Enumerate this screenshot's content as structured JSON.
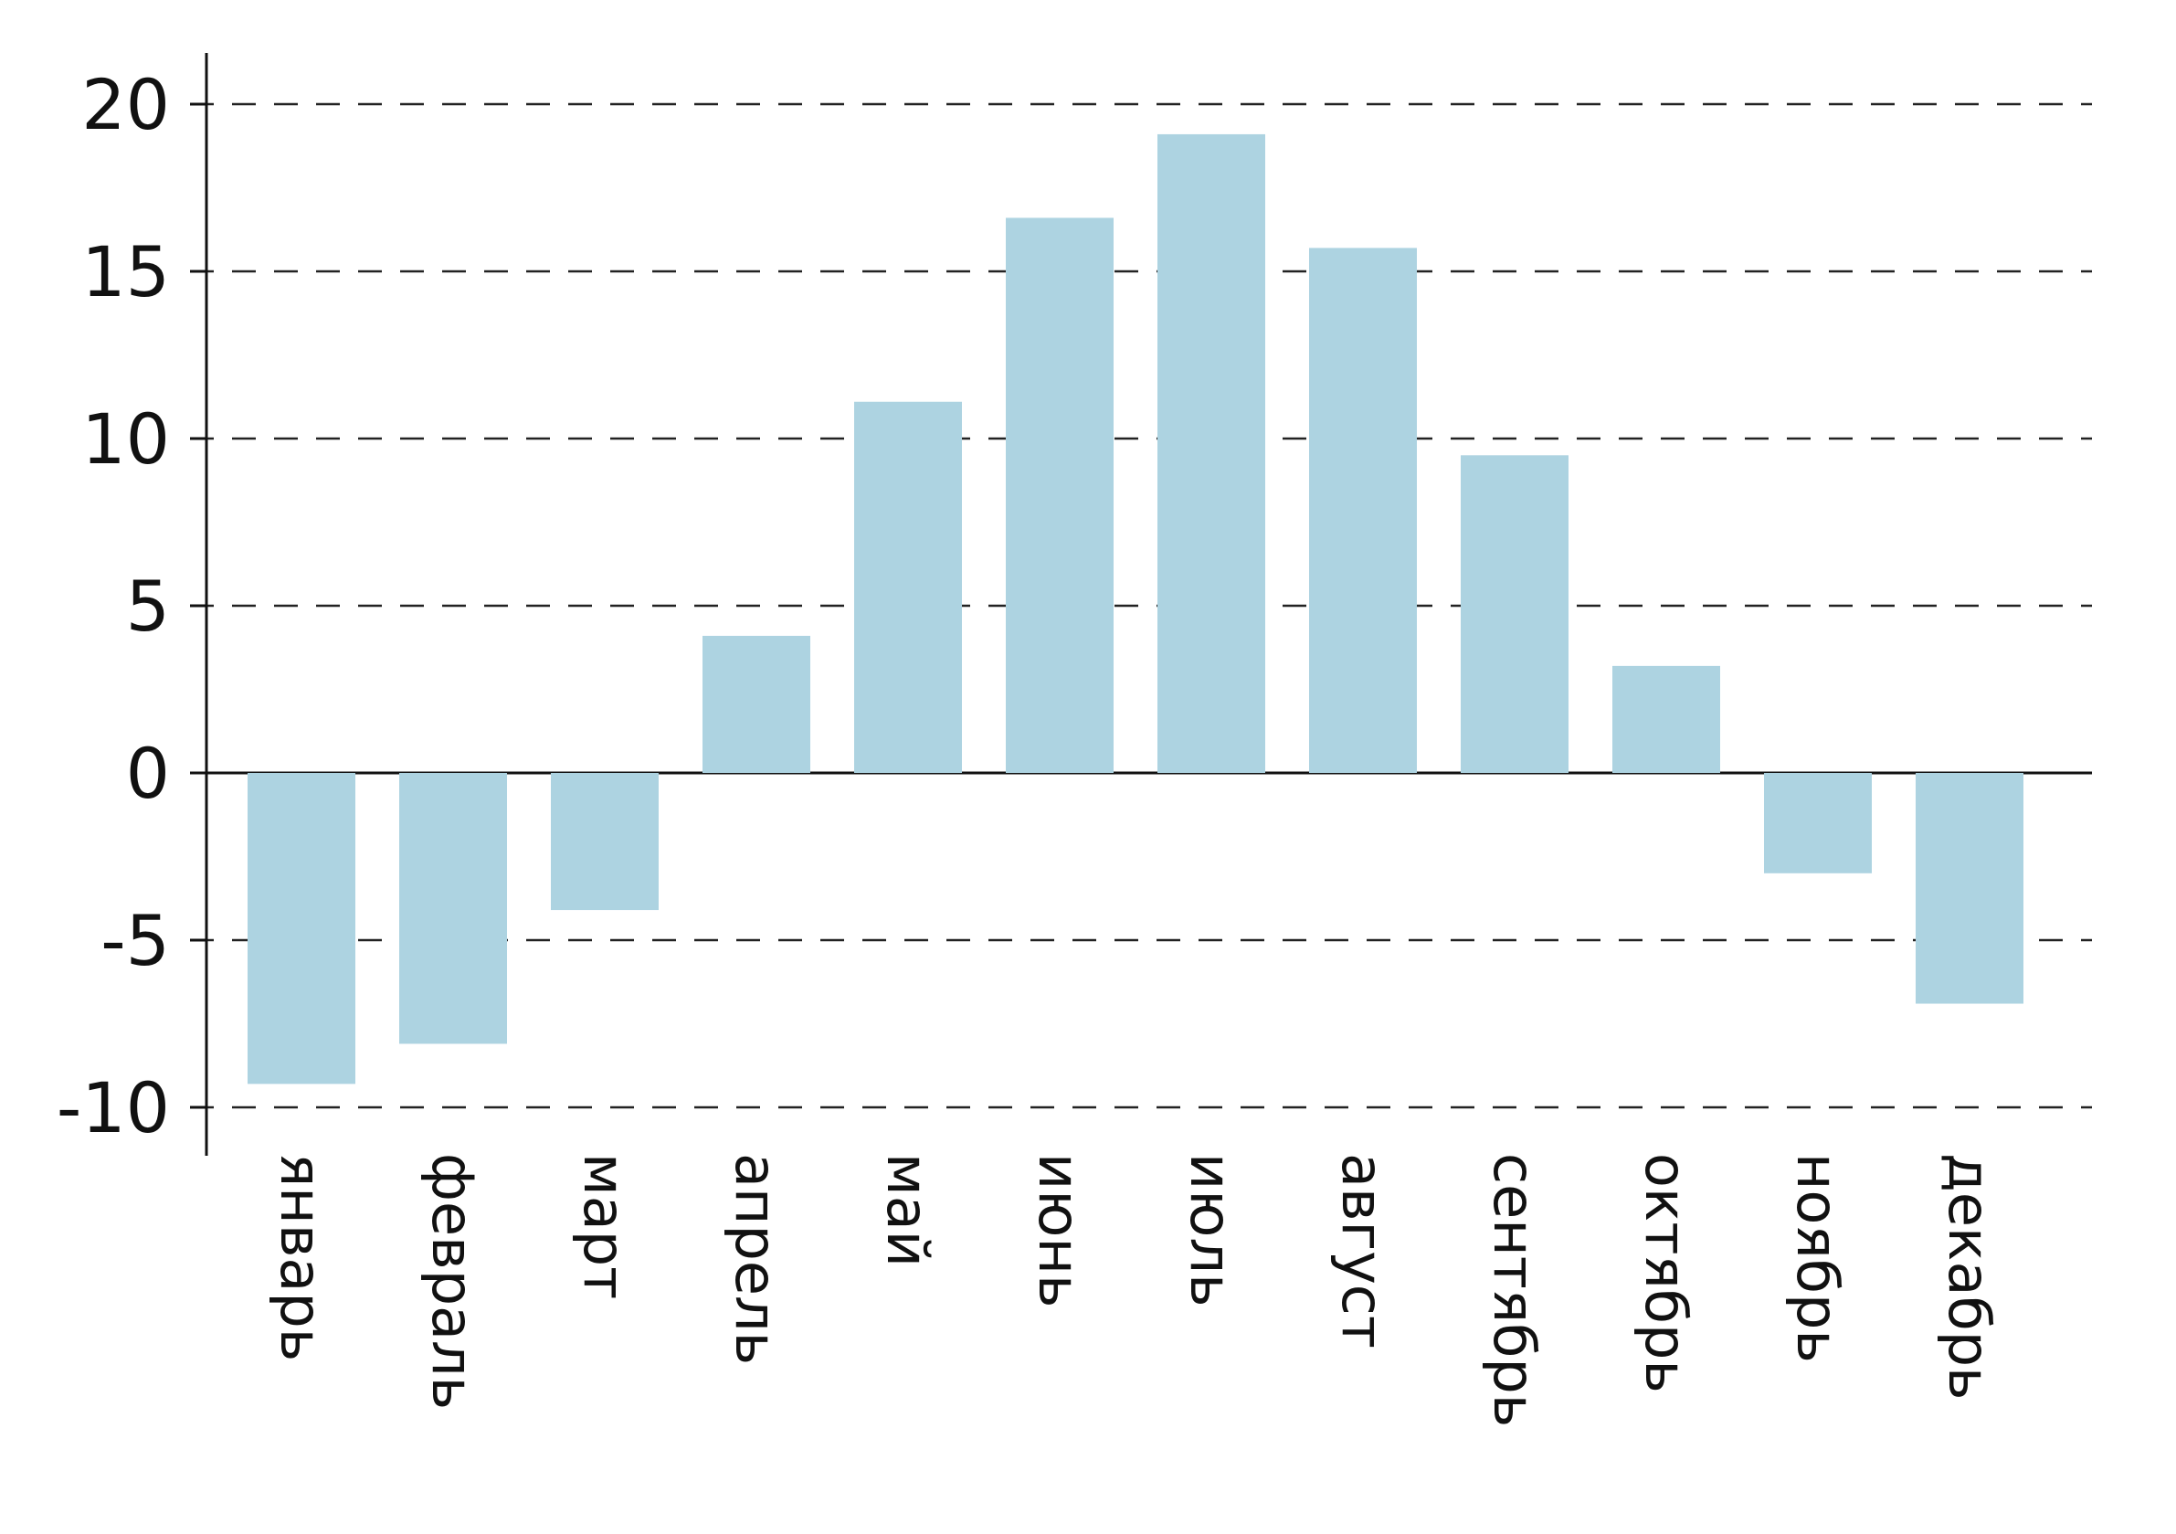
{
  "chart_data": {
    "type": "bar",
    "categories": [
      "январь",
      "февраль",
      "март",
      "апрель",
      "май",
      "июнь",
      "июль",
      "август",
      "сентябрь",
      "октябрь",
      "ноябрь",
      "декабрь"
    ],
    "values": [
      -9.3,
      -8.1,
      -4.1,
      4.1,
      11.1,
      16.6,
      19.1,
      15.7,
      9.5,
      3.2,
      -3.0,
      -6.9
    ],
    "title": "",
    "xlabel": "",
    "ylabel": "",
    "ylim": [
      -10.8,
      21.5
    ],
    "yticks": [
      20,
      15,
      10,
      5,
      0,
      -5,
      -10
    ],
    "ytick_labels": [
      "20",
      "15",
      "10",
      "5",
      "0",
      "-5",
      "-10"
    ],
    "grid": "horizontal dashed",
    "bar_color": "#add3e1"
  }
}
